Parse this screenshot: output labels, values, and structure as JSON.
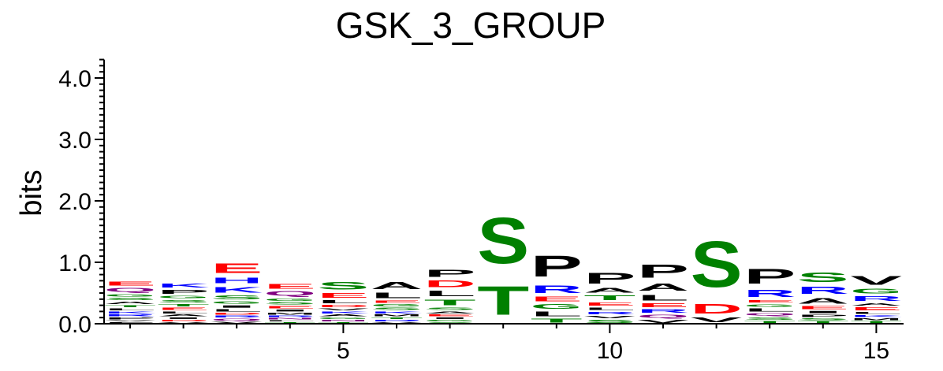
{
  "chart_data": {
    "type": "sequence-logo",
    "title": "GSK_3_GROUP",
    "ylabel": "bits",
    "xlabel": "",
    "ylim": [
      0,
      4.3
    ],
    "y_ticks": [
      "0.0",
      "1.0",
      "2.0",
      "3.0",
      "4.0"
    ],
    "x_ticks": [
      "5",
      "10",
      "15"
    ],
    "x_tick_positions": [
      5,
      10,
      15
    ],
    "colors": {
      "acidic": "#ff0000",
      "polar": "#008000",
      "basic": "#0000ff",
      "amide": "#800080",
      "hydrophobic": "#000000"
    },
    "positions": [
      {
        "pos": 1,
        "letters": [
          [
            "F",
            0.03
          ],
          [
            "V",
            0.03
          ],
          [
            "P",
            0.05
          ],
          [
            "R",
            0.05
          ],
          [
            "K",
            0.05
          ],
          [
            "L",
            0.05
          ],
          [
            "T",
            0.05
          ],
          [
            "A",
            0.06
          ],
          [
            "S",
            0.06
          ],
          [
            "G",
            0.07
          ],
          [
            "Q",
            0.1
          ],
          [
            "E",
            0.1
          ]
        ]
      },
      {
        "pos": 2,
        "letters": [
          [
            "V",
            0.03
          ],
          [
            "D",
            0.04
          ],
          [
            "I",
            0.04
          ],
          [
            "A",
            0.05
          ],
          [
            "L",
            0.05
          ],
          [
            "E",
            0.06
          ],
          [
            "T",
            0.06
          ],
          [
            "S",
            0.07
          ],
          [
            "G",
            0.07
          ],
          [
            "P",
            0.1
          ],
          [
            "K",
            0.1
          ]
        ]
      },
      {
        "pos": 3,
        "letters": [
          [
            "V",
            0.04
          ],
          [
            "Q",
            0.05
          ],
          [
            "R",
            0.05
          ],
          [
            "D",
            0.05
          ],
          [
            "L",
            0.06
          ],
          [
            "I",
            0.06
          ],
          [
            "G",
            0.07
          ],
          [
            "S",
            0.1
          ],
          [
            "K",
            0.15
          ],
          [
            "H",
            0.15
          ],
          [
            "E",
            0.25
          ]
        ]
      },
      {
        "pos": 4,
        "letters": [
          [
            "T",
            0.03
          ],
          [
            "L",
            0.03
          ],
          [
            "N",
            0.04
          ],
          [
            "R",
            0.04
          ],
          [
            "M",
            0.05
          ],
          [
            "I",
            0.05
          ],
          [
            "E",
            0.06
          ],
          [
            "S",
            0.06
          ],
          [
            "G",
            0.07
          ],
          [
            "Q",
            0.12
          ],
          [
            "E",
            0.12
          ]
        ]
      },
      {
        "pos": 5,
        "letters": [
          [
            "T",
            0.03
          ],
          [
            "N",
            0.04
          ],
          [
            "G",
            0.04
          ],
          [
            "A",
            0.05
          ],
          [
            "K",
            0.05
          ],
          [
            "V",
            0.05
          ],
          [
            "D",
            0.06
          ],
          [
            "L",
            0.08
          ],
          [
            "E",
            0.12
          ],
          [
            "S",
            0.2
          ]
        ]
      },
      {
        "pos": 6,
        "letters": [
          [
            "V",
            0.03
          ],
          [
            "R",
            0.04
          ],
          [
            "T",
            0.04
          ],
          [
            "M",
            0.05
          ],
          [
            "K",
            0.05
          ],
          [
            "S",
            0.06
          ],
          [
            "G",
            0.06
          ],
          [
            "E",
            0.06
          ],
          [
            "L",
            0.14
          ],
          [
            "A",
            0.18
          ]
        ]
      },
      {
        "pos": 7,
        "letters": [
          [
            "S",
            0.03
          ],
          [
            "G",
            0.04
          ],
          [
            "I",
            0.04
          ],
          [
            "E",
            0.05
          ],
          [
            "A",
            0.05
          ],
          [
            "S",
            0.06
          ],
          [
            "T",
            0.15
          ],
          [
            "L",
            0.14
          ],
          [
            "D",
            0.17
          ],
          [
            "P",
            0.18
          ]
        ]
      },
      {
        "pos": 8,
        "letters": [
          [
            "T",
            0.75
          ],
          [
            "S",
            1.2
          ]
        ]
      },
      {
        "pos": 9,
        "letters": [
          [
            "T",
            0.1
          ],
          [
            "L",
            0.12
          ],
          [
            "G",
            0.12
          ],
          [
            "E",
            0.12
          ],
          [
            "R",
            0.2
          ],
          [
            "P",
            0.55
          ]
        ]
      },
      {
        "pos": 10,
        "letters": [
          [
            "S",
            0.08
          ],
          [
            "V",
            0.06
          ],
          [
            "R",
            0.07
          ],
          [
            "L",
            0.07
          ],
          [
            "E",
            0.08
          ],
          [
            "T",
            0.12
          ],
          [
            "A",
            0.12
          ],
          [
            "P",
            0.28
          ]
        ]
      },
      {
        "pos": 11,
        "letters": [
          [
            "V",
            0.08
          ],
          [
            "Q",
            0.08
          ],
          [
            "R",
            0.09
          ],
          [
            "E",
            0.1
          ],
          [
            "L",
            0.15
          ],
          [
            "A",
            0.18
          ],
          [
            "P",
            0.35
          ]
        ]
      },
      {
        "pos": 12,
        "letters": [
          [
            "V",
            0.12
          ],
          [
            "D",
            0.25
          ],
          [
            "S",
            1.2
          ]
        ]
      },
      {
        "pos": 13,
        "letters": [
          [
            "T",
            0.05
          ],
          [
            "S",
            0.07
          ],
          [
            "Q",
            0.06
          ],
          [
            "L",
            0.08
          ],
          [
            "G",
            0.07
          ],
          [
            "E",
            0.07
          ],
          [
            "R",
            0.18
          ],
          [
            "P",
            0.38
          ]
        ]
      },
      {
        "pos": 14,
        "letters": [
          [
            "T",
            0.05
          ],
          [
            "S",
            0.05
          ],
          [
            "P",
            0.06
          ],
          [
            "I",
            0.06
          ],
          [
            "E",
            0.08
          ],
          [
            "A",
            0.15
          ],
          [
            "R",
            0.18
          ],
          [
            "S",
            0.25
          ]
        ]
      },
      {
        "pos": 15,
        "letters": [
          [
            "T",
            0.05
          ],
          [
            "M",
            0.05
          ],
          [
            "K",
            0.05
          ],
          [
            "L",
            0.05
          ],
          [
            "E",
            0.08
          ],
          [
            "A",
            0.07
          ],
          [
            "R",
            0.12
          ],
          [
            "G",
            0.12
          ],
          [
            "V",
            0.22
          ]
        ]
      }
    ]
  }
}
